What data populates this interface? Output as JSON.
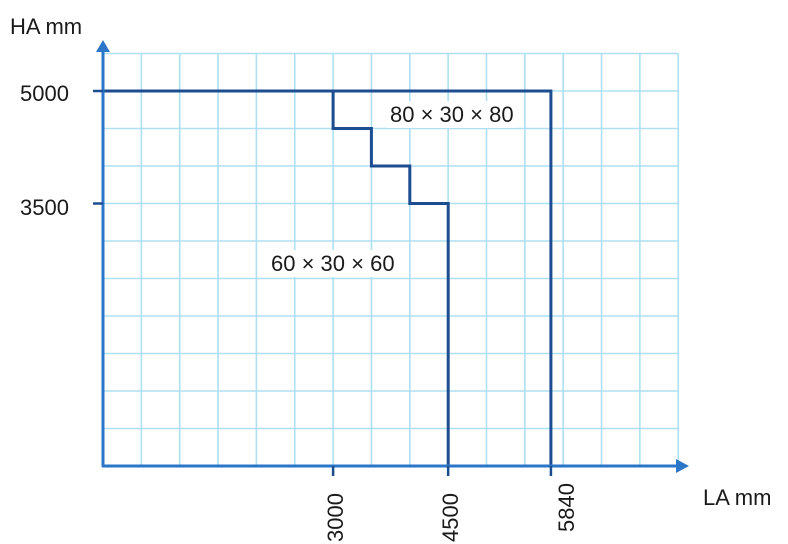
{
  "chart_data": {
    "type": "line",
    "xlabel": "LA mm",
    "ylabel": "HA mm",
    "xlim": [
      0,
      7500
    ],
    "ylim": [
      0,
      5000
    ],
    "x_ticks": [
      "3000",
      "4500",
      "5840"
    ],
    "y_ticks": [
      "5000",
      "3500"
    ],
    "grid": true,
    "colors": {
      "grid": "#aee0f2",
      "axis": "#2b76c8",
      "series": "#1c4d91"
    },
    "series": [
      {
        "name": "80 × 30 × 80",
        "points": [
          [
            0,
            5000
          ],
          [
            5840,
            5000
          ],
          [
            5840,
            0
          ]
        ]
      },
      {
        "name": "60 × 30 × 60",
        "points": [
          [
            3000,
            5000
          ],
          [
            3000,
            4500
          ],
          [
            3500,
            4500
          ],
          [
            3500,
            4000
          ],
          [
            4000,
            4000
          ],
          [
            4000,
            3500
          ],
          [
            4500,
            3500
          ],
          [
            4500,
            0
          ]
        ]
      }
    ]
  }
}
